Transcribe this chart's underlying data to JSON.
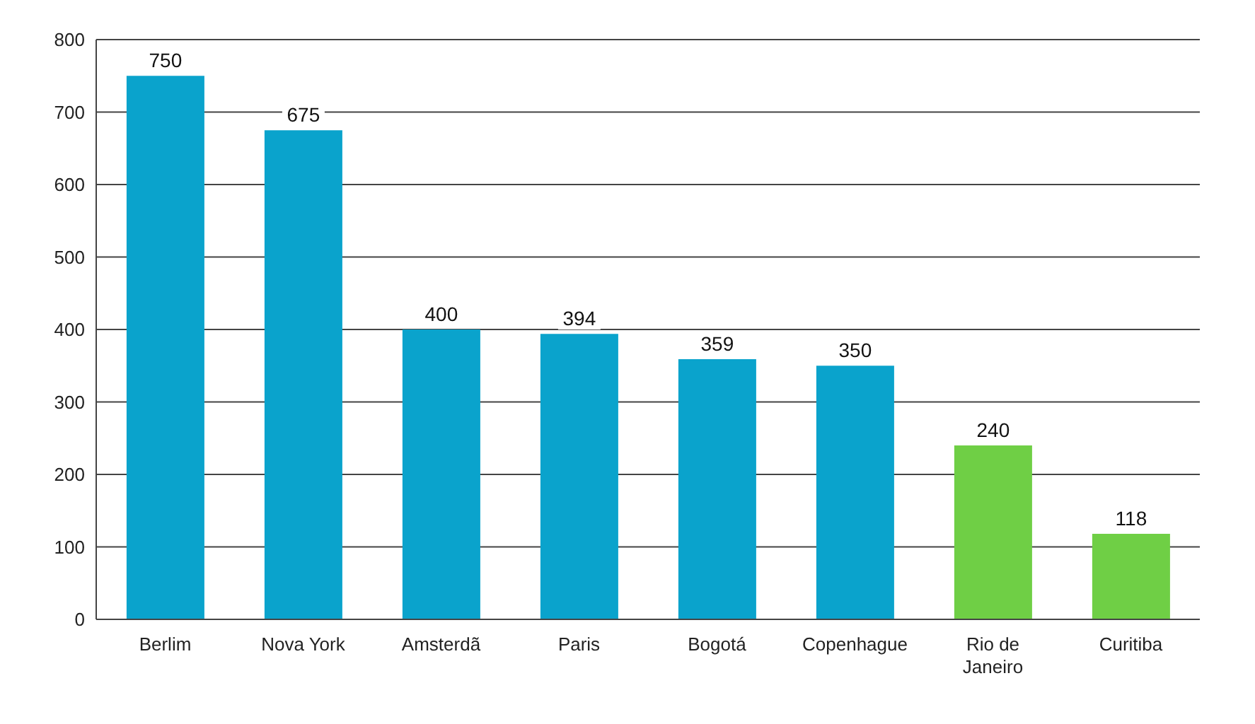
{
  "chart_data": {
    "type": "bar",
    "categories": [
      "Berlim",
      "Nova York",
      "Amsterdã",
      "Paris",
      "Bogotá",
      "Copenhague",
      "Rio de Janeiro",
      "Curitiba"
    ],
    "values": [
      750,
      675,
      400,
      394,
      359,
      350,
      240,
      118
    ],
    "colors": [
      "#0aa3cc",
      "#0aa3cc",
      "#0aa3cc",
      "#0aa3cc",
      "#0aa3cc",
      "#0aa3cc",
      "#6fcf45",
      "#6fcf45"
    ],
    "ylim": [
      0,
      800
    ],
    "yticks": [
      0,
      100,
      200,
      300,
      400,
      500,
      600,
      700,
      800
    ],
    "grid": "y",
    "data_labels": true
  }
}
